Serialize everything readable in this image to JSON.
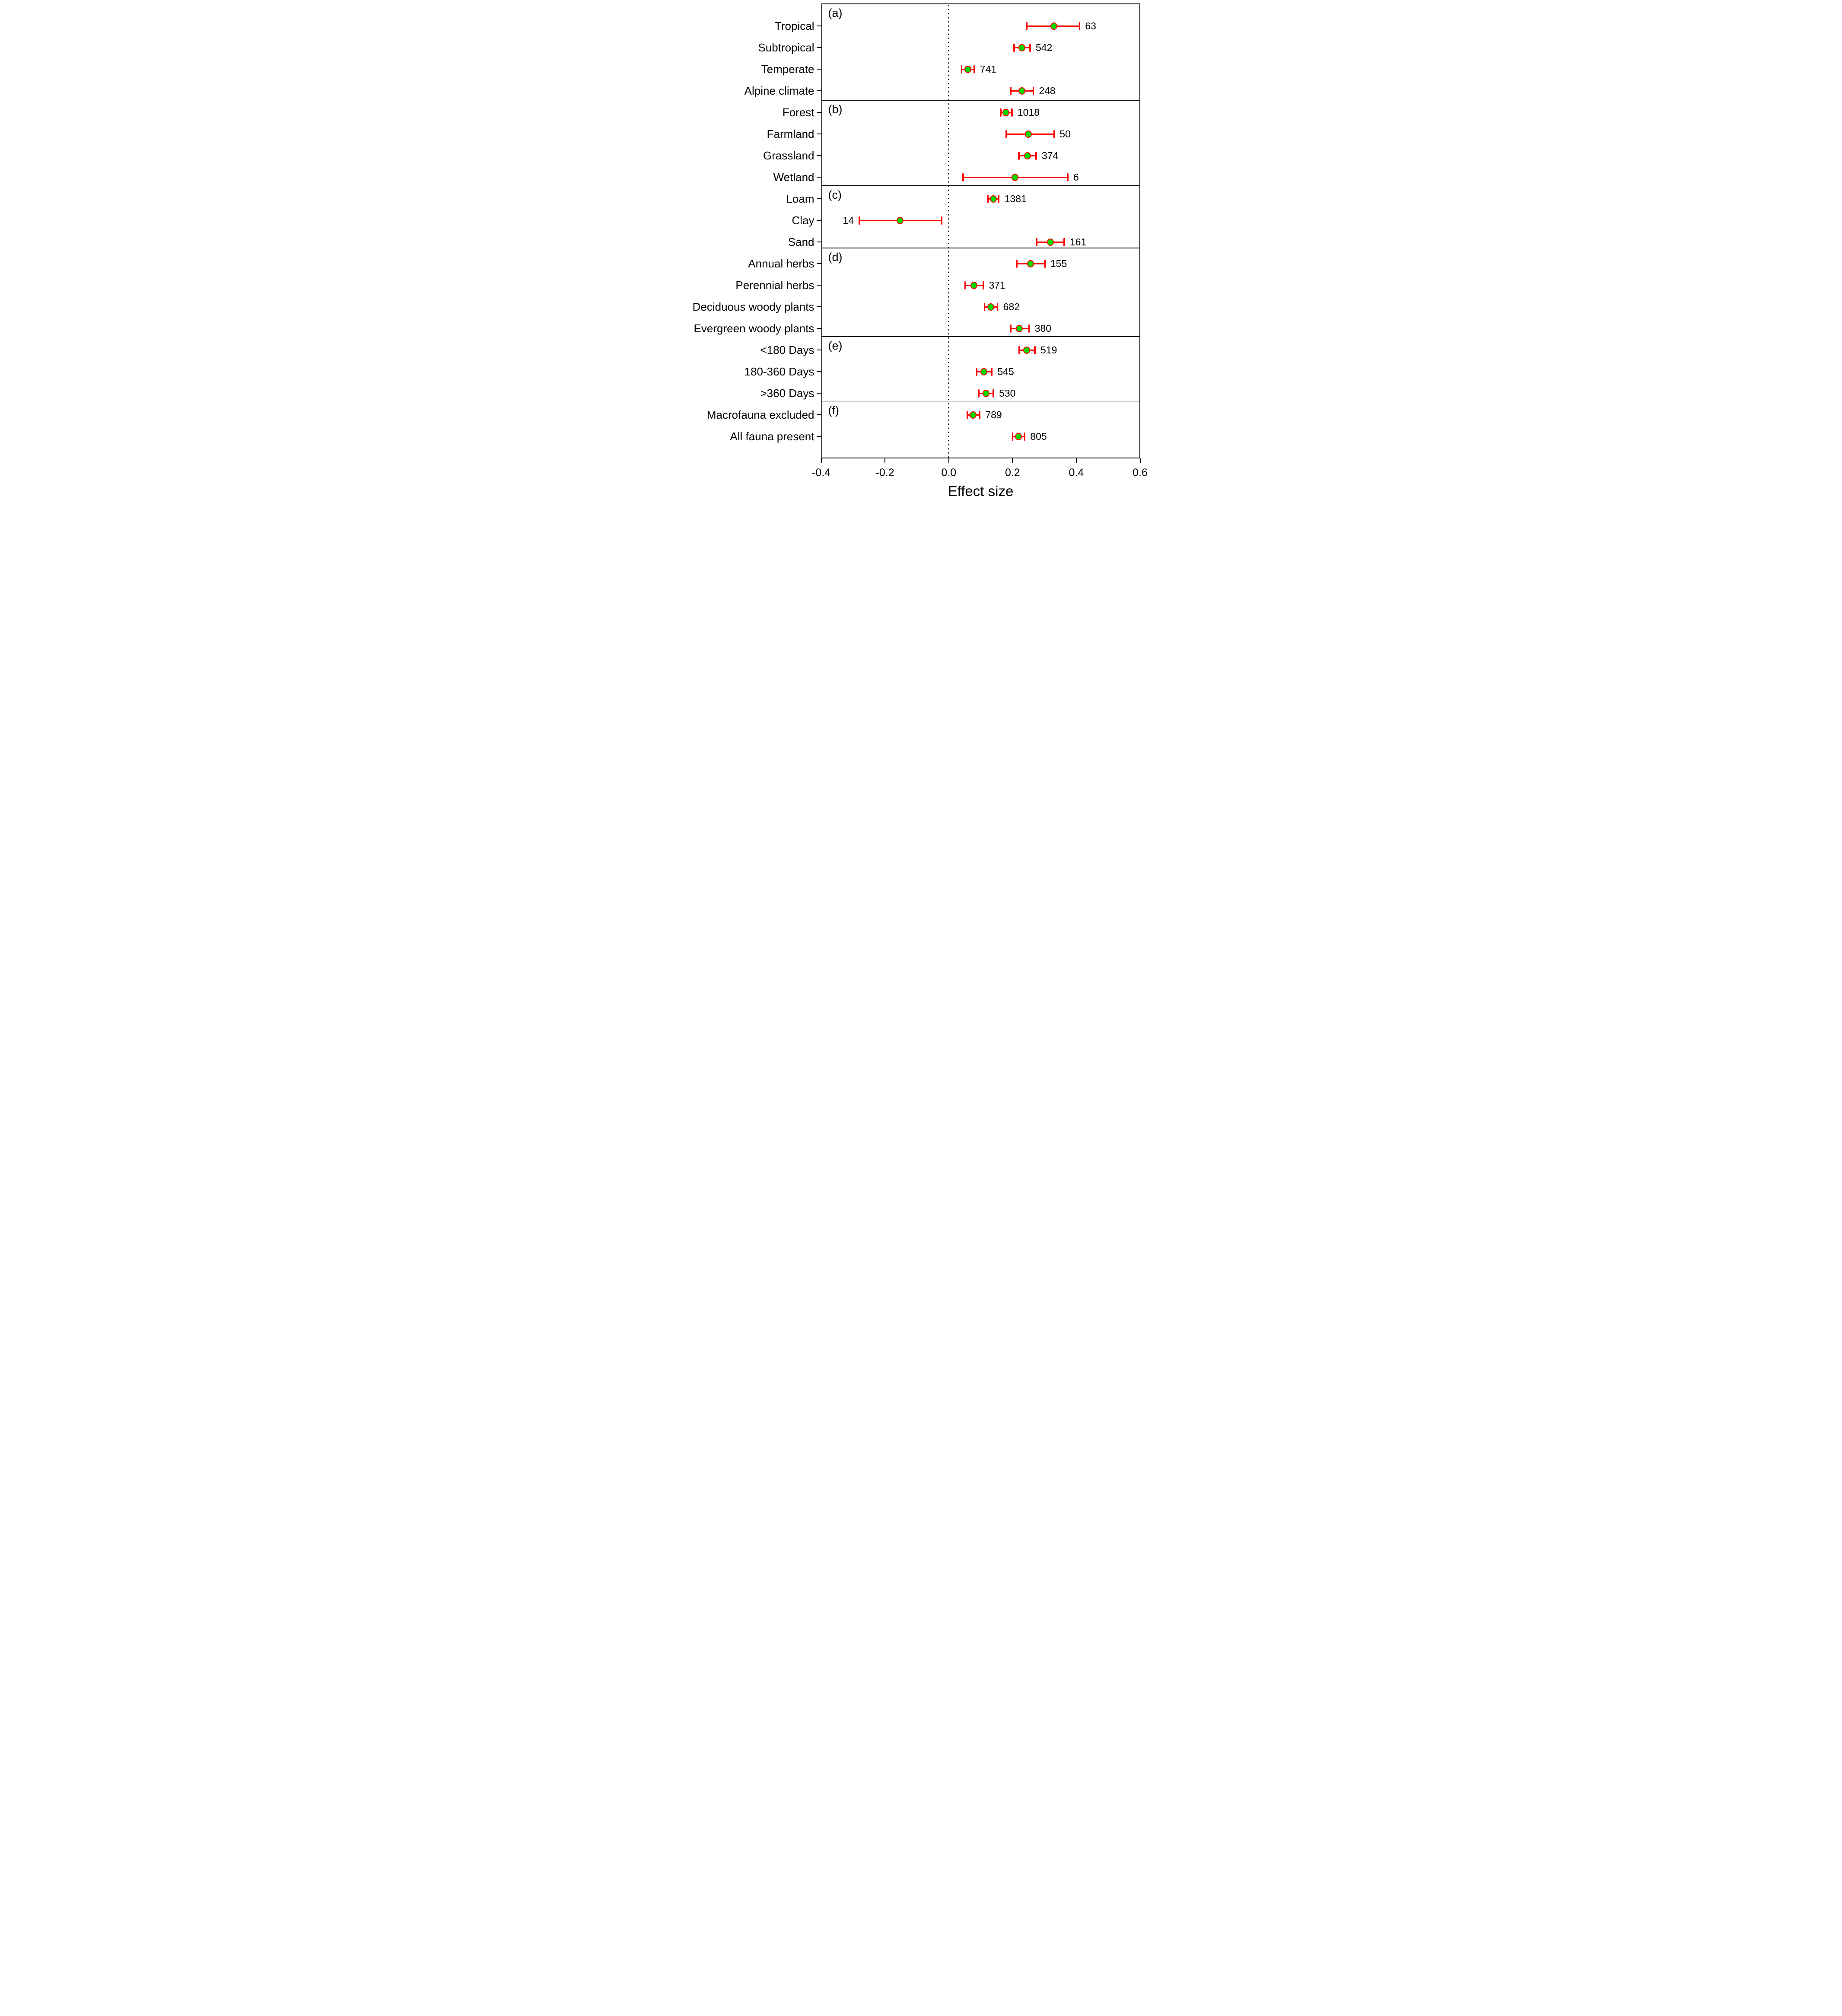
{
  "chart_data": {
    "type": "scatter",
    "subtype": "forest-plot-dot-whisker",
    "xlabel": "Effect size",
    "xlim": [
      -0.4,
      0.6
    ],
    "grid": false,
    "zero_reference_line": 0.0,
    "x_ticks": [
      {
        "value": -0.4,
        "label": "-0.4"
      },
      {
        "value": -0.2,
        "label": "-0.2"
      },
      {
        "value": 0.0,
        "label": "0.0"
      },
      {
        "value": 0.2,
        "label": "0.2"
      },
      {
        "value": 0.4,
        "label": "0.4"
      },
      {
        "value": 0.6,
        "label": "0.6"
      }
    ],
    "colors": {
      "marker_fill": "#00dd00",
      "marker_stroke": "#ff0000",
      "error_bar": "#ff0000",
      "axis": "#000000"
    },
    "panels": [
      {
        "letter": "(a)",
        "rows": [
          {
            "label": "Tropical",
            "mean": 0.33,
            "ci_low": 0.245,
            "ci_high": 0.41,
            "n": "63",
            "n_side": "right"
          },
          {
            "label": "Subtropical",
            "mean": 0.23,
            "ci_low": 0.205,
            "ci_high": 0.255,
            "n": "542",
            "n_side": "right"
          },
          {
            "label": "Temperate",
            "mean": 0.06,
            "ci_low": 0.04,
            "ci_high": 0.08,
            "n": "741",
            "n_side": "right"
          },
          {
            "label": "Alpine climate",
            "mean": 0.23,
            "ci_low": 0.195,
            "ci_high": 0.265,
            "n": "248",
            "n_side": "right"
          }
        ]
      },
      {
        "letter": "(b)",
        "rows": [
          {
            "label": "Forest",
            "mean": 0.18,
            "ci_low": 0.163,
            "ci_high": 0.198,
            "n": "1018",
            "n_side": "right"
          },
          {
            "label": "Farmland",
            "mean": 0.25,
            "ci_low": 0.18,
            "ci_high": 0.33,
            "n": "50",
            "n_side": "right"
          },
          {
            "label": "Grassland",
            "mean": 0.247,
            "ci_low": 0.22,
            "ci_high": 0.274,
            "n": "374",
            "n_side": "right"
          },
          {
            "label": "Wetland",
            "mean": 0.208,
            "ci_low": 0.045,
            "ci_high": 0.373,
            "n": "6",
            "n_side": "right"
          }
        ]
      },
      {
        "letter": "(c)",
        "rows": [
          {
            "label": "Loam",
            "mean": 0.14,
            "ci_low": 0.123,
            "ci_high": 0.157,
            "n": "1381",
            "n_side": "right"
          },
          {
            "label": "Clay",
            "mean": -0.152,
            "ci_low": -0.28,
            "ci_high": -0.022,
            "n": "14",
            "n_side": "left"
          },
          {
            "label": "Sand",
            "mean": 0.319,
            "ci_low": 0.276,
            "ci_high": 0.362,
            "n": "161",
            "n_side": "right"
          }
        ]
      },
      {
        "letter": "(d)",
        "rows": [
          {
            "label": "Annual herbs",
            "mean": 0.257,
            "ci_low": 0.214,
            "ci_high": 0.301,
            "n": "155",
            "n_side": "right"
          },
          {
            "label": "Perennial herbs",
            "mean": 0.079,
            "ci_low": 0.051,
            "ci_high": 0.108,
            "n": "371",
            "n_side": "right"
          },
          {
            "label": "Deciduous woody plants",
            "mean": 0.132,
            "ci_low": 0.112,
            "ci_high": 0.153,
            "n": "682",
            "n_side": "right"
          },
          {
            "label": "Evergreen woody plants",
            "mean": 0.222,
            "ci_low": 0.195,
            "ci_high": 0.252,
            "n": "380",
            "n_side": "right"
          }
        ]
      },
      {
        "letter": "(e)",
        "rows": [
          {
            "label": "<180 Days",
            "mean": 0.245,
            "ci_low": 0.221,
            "ci_high": 0.27,
            "n": "519",
            "n_side": "right"
          },
          {
            "label": "180-360 Days",
            "mean": 0.111,
            "ci_low": 0.088,
            "ci_high": 0.135,
            "n": "545",
            "n_side": "right"
          },
          {
            "label": ">360 Days",
            "mean": 0.117,
            "ci_low": 0.094,
            "ci_high": 0.14,
            "n": "530",
            "n_side": "right"
          }
        ]
      },
      {
        "letter": "(f)",
        "rows": [
          {
            "label": "Macrofauna  excluded",
            "mean": 0.076,
            "ci_low": 0.058,
            "ci_high": 0.097,
            "n": "789",
            "n_side": "right"
          },
          {
            "label": "All fauna present",
            "mean": 0.219,
            "ci_low": 0.2,
            "ci_high": 0.238,
            "n": "805",
            "n_side": "right"
          }
        ]
      }
    ]
  }
}
